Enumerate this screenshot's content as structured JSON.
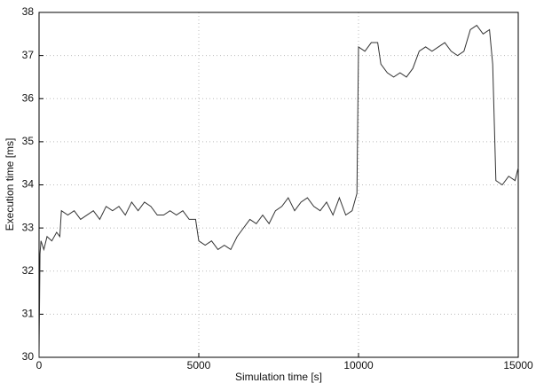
{
  "chart_data": {
    "type": "line",
    "xlabel": "Simulation time [s]",
    "ylabel": "Execution time [ms]",
    "x": [
      0,
      30,
      60,
      150,
      250,
      400,
      550,
      650,
      700,
      900,
      1100,
      1300,
      1500,
      1700,
      1900,
      2100,
      2300,
      2500,
      2700,
      2900,
      3100,
      3300,
      3500,
      3700,
      3900,
      4100,
      4300,
      4500,
      4700,
      4900,
      5000,
      5200,
      5400,
      5600,
      5800,
      6000,
      6200,
      6400,
      6600,
      6800,
      7000,
      7200,
      7400,
      7600,
      7800,
      8000,
      8200,
      8400,
      8600,
      8800,
      9000,
      9200,
      9400,
      9600,
      9800,
      9950,
      10000,
      10200,
      10400,
      10600,
      10700,
      10900,
      11100,
      11300,
      11500,
      11700,
      11900,
      12100,
      12300,
      12500,
      12700,
      12900,
      13100,
      13300,
      13500,
      13700,
      13900,
      14100,
      14200,
      14300,
      14500,
      14700,
      14900,
      15000
    ],
    "values": [
      30,
      32.4,
      32.7,
      32.5,
      32.8,
      32.7,
      32.9,
      32.8,
      33.4,
      33.3,
      33.4,
      33.2,
      33.3,
      33.4,
      33.2,
      33.5,
      33.4,
      33.5,
      33.3,
      33.6,
      33.4,
      33.6,
      33.5,
      33.3,
      33.3,
      33.4,
      33.3,
      33.4,
      33.2,
      33.2,
      32.7,
      32.6,
      32.7,
      32.5,
      32.6,
      32.5,
      32.8,
      33.0,
      33.2,
      33.1,
      33.3,
      33.1,
      33.4,
      33.5,
      33.7,
      33.4,
      33.6,
      33.7,
      33.5,
      33.4,
      33.6,
      33.3,
      33.7,
      33.3,
      33.4,
      33.8,
      37.2,
      37.1,
      37.3,
      37.3,
      36.8,
      36.6,
      36.5,
      36.6,
      36.5,
      36.7,
      37.1,
      37.2,
      37.1,
      37.2,
      37.3,
      37.1,
      37.0,
      37.1,
      37.6,
      37.7,
      37.5,
      37.6,
      36.8,
      34.1,
      34.0,
      34.2,
      34.1,
      34.4
    ],
    "color": "#333333",
    "xlim": [
      0,
      15000
    ],
    "xticks": [
      0,
      5000,
      10000,
      15000
    ],
    "ylim": [
      30,
      38
    ],
    "yticks": [
      30,
      31,
      32,
      33,
      34,
      35,
      36,
      37,
      38
    ],
    "grid": true
  }
}
